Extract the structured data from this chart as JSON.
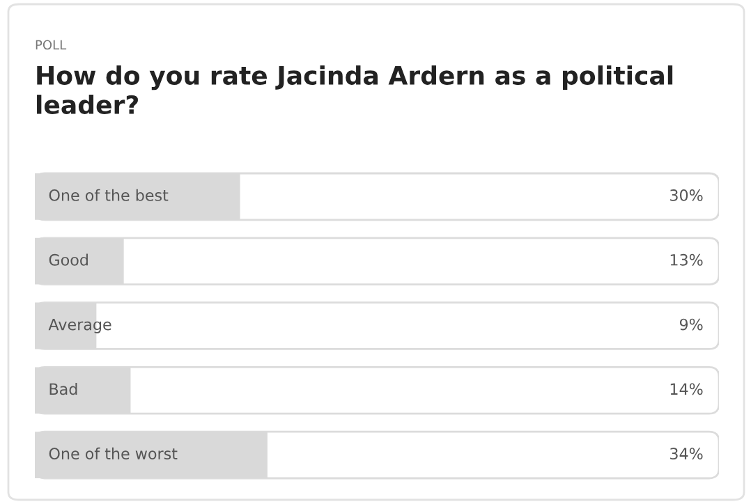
{
  "chart_data": {
    "type": "bar",
    "orientation": "horizontal",
    "title": "How do you rate Jacinda Ardern as a political leader?",
    "annotations": [
      "POLL"
    ],
    "categories": [
      "One of the best",
      "Good",
      "Average",
      "Bad",
      "One of the worst"
    ],
    "values": [
      30,
      13,
      9,
      14,
      34
    ],
    "value_labels": [
      "30%",
      "13%",
      "9%",
      "14%",
      "34%"
    ],
    "color": "#d9d9d9",
    "xlim": [
      0,
      100
    ]
  }
}
